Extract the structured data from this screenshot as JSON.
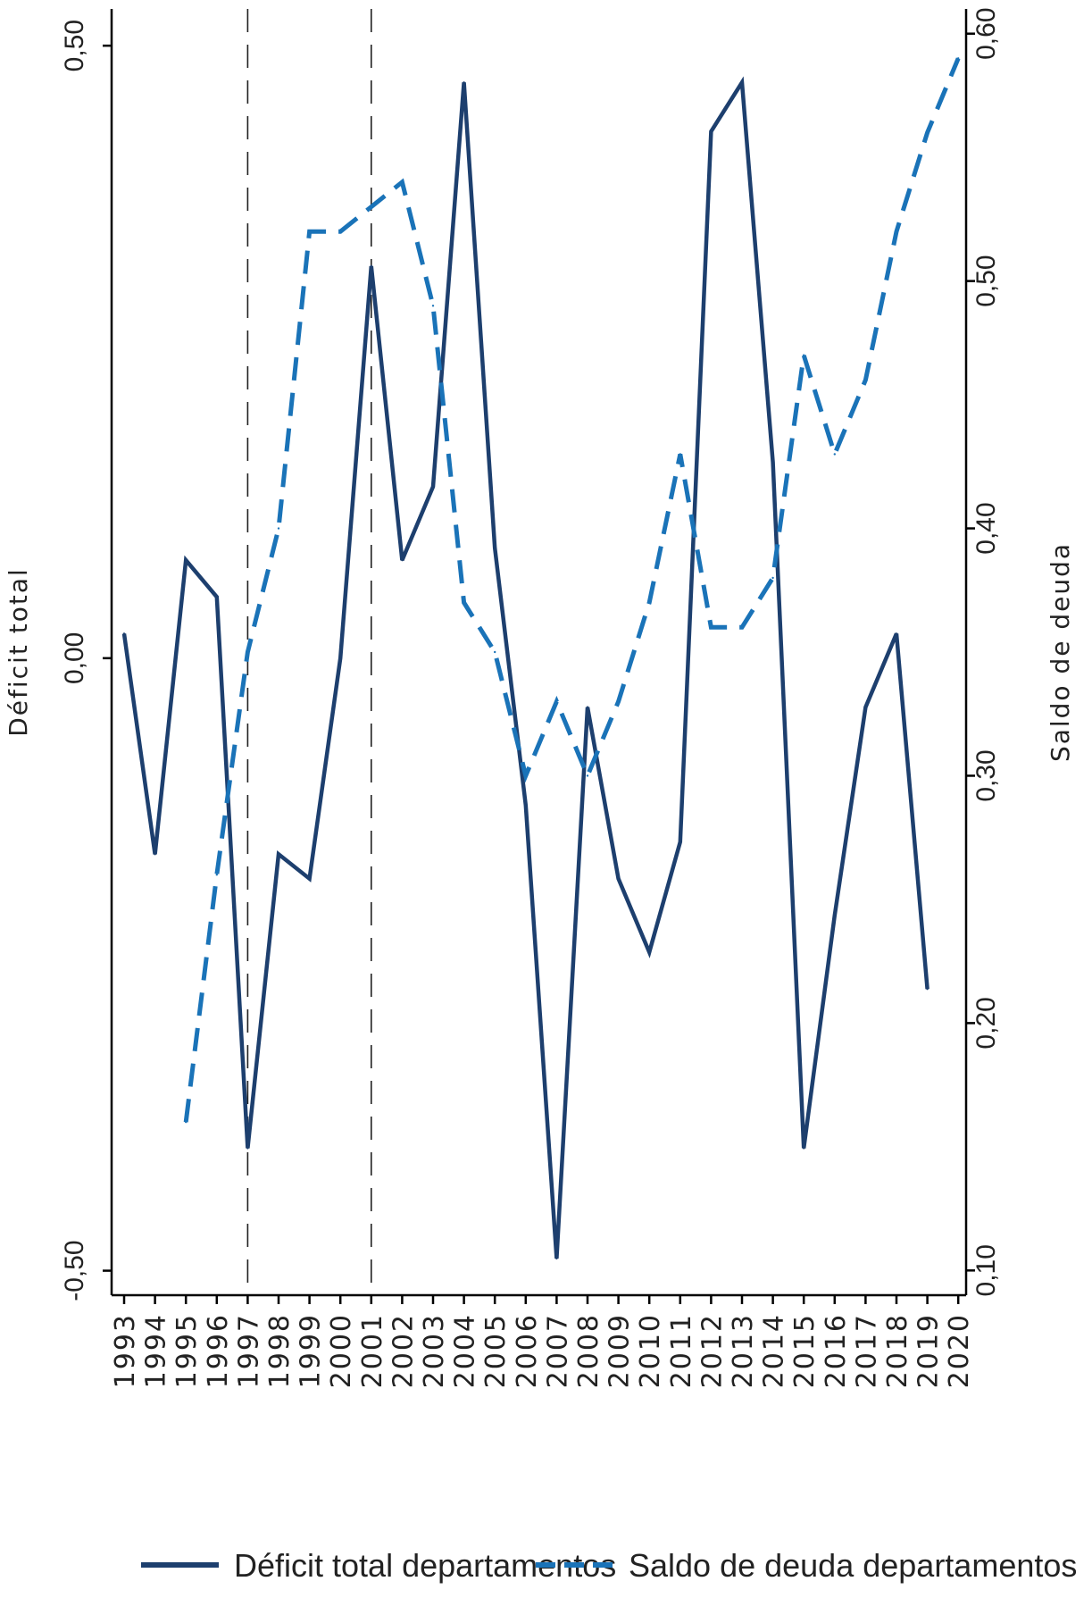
{
  "chart_data": {
    "type": "line",
    "x": [
      "1993",
      "1994",
      "1995",
      "1996",
      "1997",
      "1998",
      "1999",
      "2000",
      "2001",
      "2002",
      "2003",
      "2004",
      "2005",
      "2006",
      "2007",
      "2008",
      "2009",
      "2010",
      "2011",
      "2012",
      "2013",
      "2014",
      "2015",
      "2016",
      "2017",
      "2018",
      "2019",
      "2020"
    ],
    "ylabel_left": "Déficit total",
    "ylabel_right": "Saldo de deuda",
    "ylim_left": [
      -0.52,
      0.53
    ],
    "ylim_right": [
      0.09,
      0.61
    ],
    "yticks_left": [
      -0.5,
      0.0,
      0.5
    ],
    "yticks_left_labels": [
      "-0,50",
      "0,00",
      "0,50"
    ],
    "yticks_right": [
      0.1,
      0.2,
      0.3,
      0.4,
      0.5,
      0.6
    ],
    "yticks_right_labels": [
      "0,10",
      "0,20",
      "0,30",
      "0,40",
      "0,50",
      "0,60"
    ],
    "vertical_reference_lines": [
      "1997",
      "2001"
    ],
    "series": [
      {
        "name": "Déficit total departamentos",
        "axis": "left",
        "style": "solid",
        "color": "#1d3f6e",
        "values": [
          0.02,
          -0.16,
          0.08,
          0.05,
          -0.4,
          -0.16,
          -0.18,
          0.0,
          0.32,
          0.08,
          0.14,
          0.47,
          0.09,
          -0.12,
          -0.49,
          -0.04,
          -0.18,
          -0.24,
          -0.15,
          0.43,
          0.47,
          0.16,
          -0.4,
          -0.21,
          -0.04,
          0.02,
          -0.27,
          null
        ]
      },
      {
        "name": "Saldo de deuda departamentos",
        "axis": "right",
        "style": "dashed",
        "color": "#1a73b8",
        "values": [
          null,
          null,
          0.16,
          0.26,
          0.35,
          0.4,
          0.52,
          0.52,
          0.53,
          0.54,
          0.49,
          0.37,
          0.35,
          0.3,
          0.33,
          0.3,
          0.33,
          0.37,
          0.43,
          0.36,
          0.36,
          0.38,
          0.47,
          0.43,
          0.46,
          0.52,
          0.56,
          0.59
        ]
      }
    ],
    "legend_position": "bottom"
  }
}
